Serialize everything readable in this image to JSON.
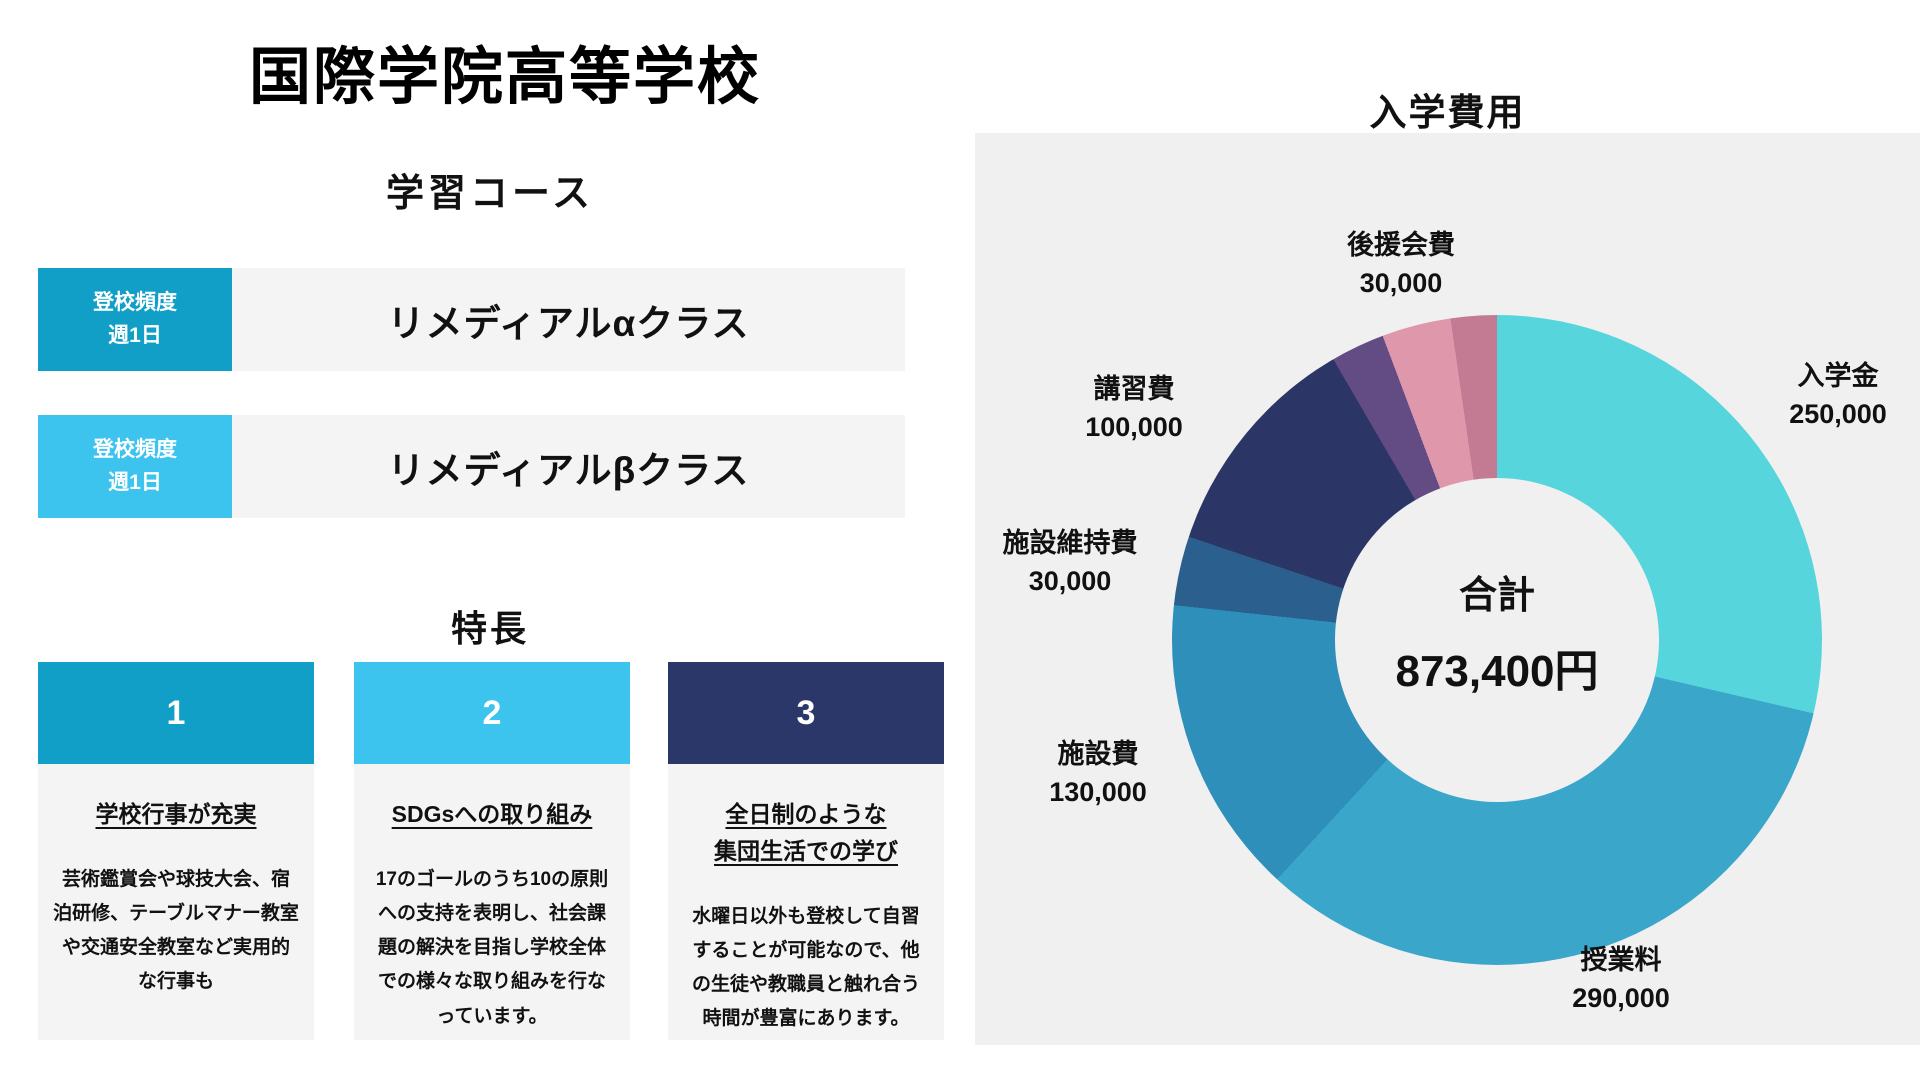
{
  "header": {
    "title": "国際学院高等学校"
  },
  "courses": {
    "heading": "学習コース",
    "items": [
      {
        "badge_line1": "登校頻度",
        "badge_line2": "週1日",
        "name": "リメディアルαクラス",
        "badge_color": "#119fc7"
      },
      {
        "badge_line1": "登校頻度",
        "badge_line2": "週1日",
        "name": "リメディアルβクラス",
        "badge_color": "#3cc4ee"
      }
    ]
  },
  "features": {
    "heading": "特長",
    "items": [
      {
        "number": "1",
        "color": "#119fc7",
        "title_line1": "学校行事が充実",
        "title_line2": "",
        "body": "芸術鑑賞会や球技大会、宿泊研修、テーブルマナー教室や交通安全教室など実用的な行事も"
      },
      {
        "number": "2",
        "color": "#3cc4ee",
        "title_line1": "SDGsへの取り組み",
        "title_line2": "",
        "body": "17のゴールのうち10の原則への支持を表明し、社会課題の解決を目指し学校全体での様々な取り組みを行なっています。"
      },
      {
        "number": "3",
        "color": "#2b3768",
        "title_line1": "全日制のような",
        "title_line2": "集団生活での学び",
        "body": "水曜日以外も登校して自習することが可能なので、他の生徒や教職員と触れ合う時間が豊富にあります。"
      }
    ]
  },
  "chart_data": {
    "type": "pie",
    "variant": "donut",
    "title": "入学費用",
    "center": {
      "label": "合計",
      "value": "873,400円"
    },
    "total": 873400,
    "legend_position": "labels-around-donut",
    "panel_bg": "#f0f0f0",
    "segments": [
      {
        "label": "入学金",
        "value": 250000,
        "display": "250,000",
        "color": "#57d5dc"
      },
      {
        "label": "授業料",
        "value": 290000,
        "display": "290,000",
        "color": "#3aa6ca"
      },
      {
        "label": "施設費",
        "value": 130000,
        "display": "130,000",
        "color": "#2e8fba"
      },
      {
        "label": "施設維持費",
        "value": 30000,
        "display": "30,000",
        "color": "#2b5f8e"
      },
      {
        "label": "講習費",
        "value": 100000,
        "display": "100,000",
        "color": "#2b3566"
      },
      {
        "label": "",
        "value": 23400,
        "display": "",
        "color": "#634b84"
      },
      {
        "label": "後援会費",
        "value": 30000,
        "display": "30,000",
        "color": "#de97ab"
      },
      {
        "label": "",
        "value": 20000,
        "display": "",
        "color": "#c27b92"
      }
    ]
  }
}
